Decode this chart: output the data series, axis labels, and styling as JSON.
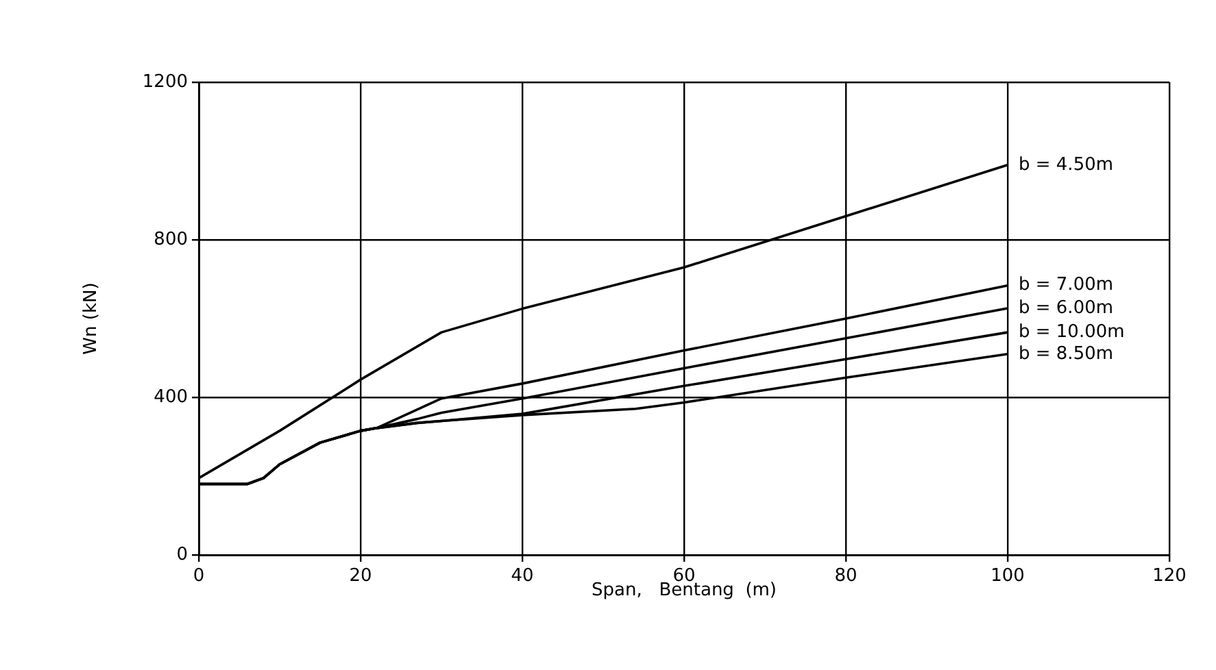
{
  "chart_data": {
    "type": "line",
    "xlabel": "Span,   Bentang  (m)",
    "ylabel": "Wn (kN)",
    "xlim": [
      0,
      120
    ],
    "xticks": [
      0,
      20,
      40,
      60,
      80,
      100,
      120
    ],
    "ylim": [
      0,
      1200
    ],
    "yticks": [
      0,
      400,
      800,
      1200
    ],
    "grid": true,
    "legend": false,
    "marker": "none",
    "line_style": "solid",
    "series": [
      {
        "name": "b = 4.50m",
        "color": "#000000",
        "x": [
          0,
          10,
          20,
          30,
          40,
          60,
          80,
          100
        ],
        "values": [
          195,
          315,
          445,
          565,
          625,
          730,
          860,
          990
        ]
      },
      {
        "name": "b = 7.00m",
        "color": "#000000",
        "x": [
          0,
          6,
          8,
          10,
          15,
          20,
          22,
          30,
          40,
          60,
          80,
          100
        ],
        "values": [
          180,
          180,
          195,
          230,
          285,
          315,
          322,
          397,
          435,
          519,
          600,
          684
        ]
      },
      {
        "name": "b = 6.00m",
        "color": "#000000",
        "x": [
          0,
          6,
          8,
          10,
          15,
          20,
          22,
          27,
          30,
          40,
          60,
          80,
          100
        ],
        "values": [
          180,
          180,
          195,
          230,
          285,
          315,
          322,
          345,
          361,
          397,
          474,
          550,
          626
        ]
      },
      {
        "name": "b = 10.00m",
        "color": "#000000",
        "x": [
          0,
          6,
          8,
          10,
          15,
          20,
          22,
          27,
          30,
          40,
          60,
          80,
          100
        ],
        "values": [
          180,
          180,
          195,
          230,
          285,
          315,
          322,
          335,
          340,
          358,
          429,
          497,
          565
        ]
      },
      {
        "name": "b = 8.50m",
        "color": "#000000",
        "x": [
          0,
          6,
          8,
          10,
          15,
          20,
          22,
          27,
          30,
          40,
          54,
          60,
          80,
          100
        ],
        "values": [
          180,
          180,
          195,
          230,
          285,
          315,
          322,
          335,
          340,
          355,
          371,
          387,
          450,
          510
        ]
      }
    ]
  }
}
